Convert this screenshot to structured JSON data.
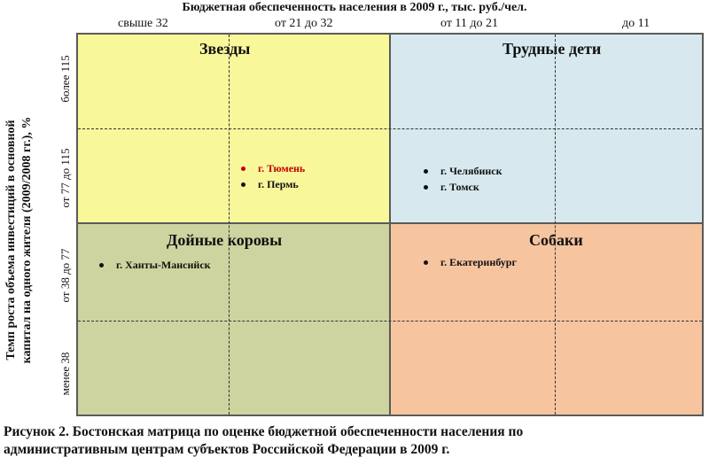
{
  "x_axis": {
    "title": "Бюджетная обеспеченность населения в 2009 г., тыс. руб./чел.",
    "categories": [
      "свыше 32",
      "от 21 до 32",
      "от 11 до 21",
      "до 11"
    ]
  },
  "y_axis": {
    "title_line1": "Темп роста объема инвестиций в основной",
    "title_line2": "капитал на одного жителя (2009/2008 гг.), %",
    "categories": [
      "более 115",
      "от 77 до 115",
      "от 38 до 77",
      "менее 38"
    ]
  },
  "quadrants": {
    "stars": {
      "title": "Звезды",
      "cities": [
        {
          "name": "г. Тюмень",
          "color": "#c00000"
        },
        {
          "name": "г. Пермь",
          "color": "#111111"
        }
      ]
    },
    "problem_children": {
      "title": "Трудные дети",
      "cities": [
        {
          "name": "г. Челябинск",
          "color": "#111111"
        },
        {
          "name": "г. Томск",
          "color": "#111111"
        }
      ]
    },
    "cash_cows": {
      "title": "Дойные коровы",
      "cities": [
        {
          "name": "г. Ханты-Мансийск",
          "color": "#111111"
        }
      ]
    },
    "dogs": {
      "title": "Собаки",
      "cities": [
        {
          "name": "г. Екатеринбург",
          "color": "#111111"
        }
      ]
    }
  },
  "colors": {
    "stars": "#f8f79a",
    "problem_children": "#d7e9ef",
    "cash_cows": "#cdd49f",
    "dogs": "#f7c4a0"
  },
  "caption": {
    "line1": "Рисунок 2. Бостонская матрица по оценке бюджетной обеспеченности населения по",
    "line2": "административным центрам субъектов Российской Федерации в 2009 г."
  }
}
